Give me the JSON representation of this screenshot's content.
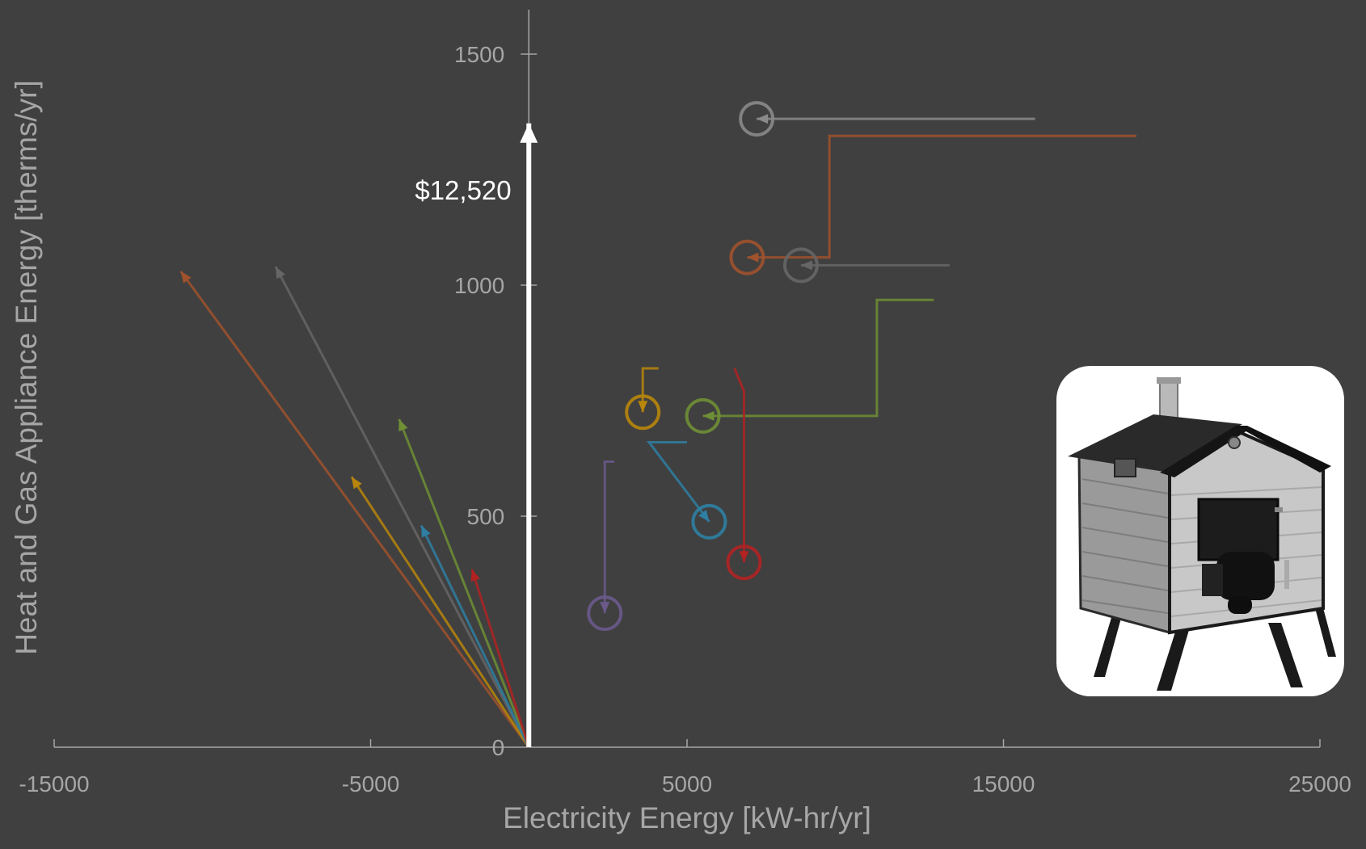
{
  "chart_data": {
    "type": "line",
    "xlabel": "Electricity Energy [kW-hr/yr]",
    "ylabel": "Heat and Gas Appliance Energy [therms/yr]",
    "xlim": [
      -15000,
      25000
    ],
    "ylim": [
      0,
      1500
    ],
    "x_ticks": [
      -15000,
      -5000,
      5000,
      15000,
      25000
    ],
    "x_tick_labels": [
      "-15000",
      "-5000",
      "5000",
      "15000",
      "25000"
    ],
    "y_ticks": [
      0,
      500,
      1000,
      1500
    ],
    "y_tick_labels": [
      "0",
      "500",
      "1000",
      "1500"
    ],
    "grid": false,
    "annotation": {
      "text": "$12,520",
      "x": 0,
      "y": 1250,
      "color": "#ffffff"
    },
    "series": [
      {
        "color": "#8a8a8a",
        "path": [
          [
            16000,
            1360
          ],
          [
            7200,
            1360
          ]
        ],
        "end_marker": "circle"
      },
      {
        "color": "#a0522d",
        "path": [
          [
            19200,
            1323
          ],
          [
            9500,
            1323
          ],
          [
            9500,
            1060
          ],
          [
            6900,
            1060
          ]
        ],
        "end_marker": "circle"
      },
      {
        "color": "#666666",
        "path": [
          [
            13300,
            1043
          ],
          [
            8600,
            1043
          ]
        ],
        "end_marker": "circle"
      },
      {
        "color": "#6f8f35",
        "path": [
          [
            12800,
            968
          ],
          [
            11000,
            968
          ],
          [
            11000,
            717
          ],
          [
            5500,
            717
          ]
        ],
        "end_marker": "circle"
      },
      {
        "color": "#b8860b",
        "path": [
          [
            4100,
            820
          ],
          [
            3600,
            820
          ],
          [
            3600,
            725
          ]
        ],
        "end_marker": "circle"
      },
      {
        "color": "#2e7fa3",
        "path": [
          [
            5000,
            660
          ],
          [
            3800,
            660
          ],
          [
            5700,
            488
          ]
        ],
        "end_marker": "circle"
      },
      {
        "color": "#b22222",
        "path": [
          [
            6500,
            820
          ],
          [
            6800,
            770
          ],
          [
            6800,
            400
          ]
        ],
        "end_marker": "circle"
      },
      {
        "color": "#6a5a8c",
        "path": [
          [
            2700,
            618
          ],
          [
            2400,
            618
          ],
          [
            2400,
            290
          ]
        ],
        "end_marker": "circle"
      },
      {
        "color": "#a0522d",
        "path": [
          [
            0,
            0
          ],
          [
            -11000,
            1030
          ]
        ],
        "end_marker": "arrow"
      },
      {
        "color": "#666666",
        "path": [
          [
            0,
            0
          ],
          [
            -8000,
            1040
          ]
        ],
        "end_marker": "arrow"
      },
      {
        "color": "#6f8f35",
        "path": [
          [
            0,
            0
          ],
          [
            -4100,
            710
          ]
        ],
        "end_marker": "arrow"
      },
      {
        "color": "#b8860b",
        "path": [
          [
            0,
            0
          ],
          [
            -5600,
            585
          ]
        ],
        "end_marker": "arrow"
      },
      {
        "color": "#2e7fa3",
        "path": [
          [
            0,
            0
          ],
          [
            -3400,
            480
          ]
        ],
        "end_marker": "arrow"
      },
      {
        "color": "#b22222",
        "path": [
          [
            0,
            0
          ],
          [
            -1800,
            385
          ]
        ],
        "end_marker": "arrow"
      },
      {
        "color": "#ffffff",
        "path": [
          [
            0,
            0
          ],
          [
            0,
            1350
          ]
        ],
        "end_marker": "arrow",
        "width": "thick"
      }
    ]
  },
  "image": {
    "subject": "outdoor wood boiler photo"
  }
}
